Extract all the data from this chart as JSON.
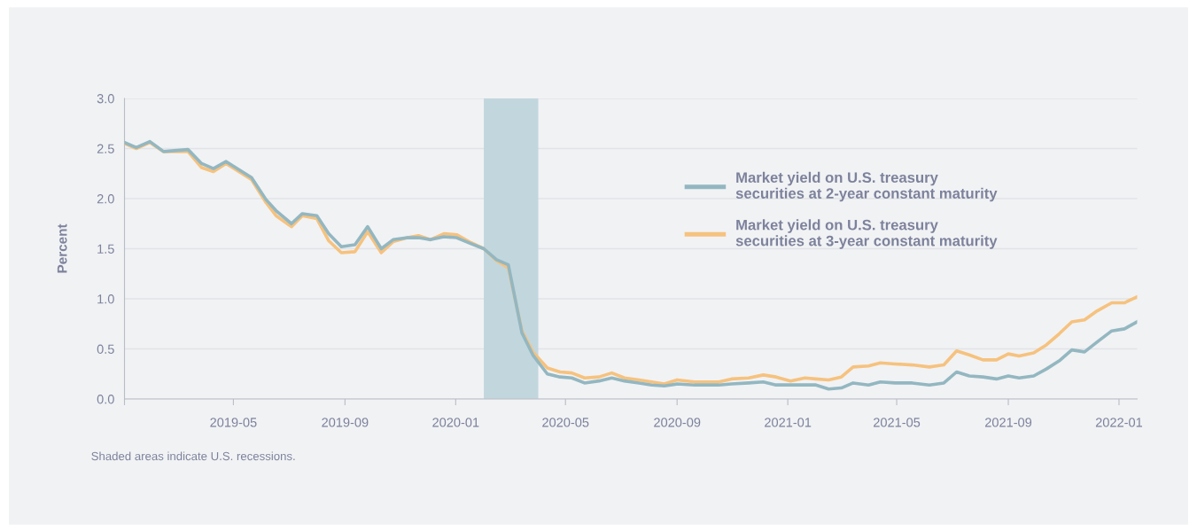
{
  "chart_data": {
    "type": "line",
    "ylabel": "Percent",
    "x": [
      "2019-01-01",
      "2019-01-14",
      "2019-01-29",
      "2019-02-13",
      "2019-03-12",
      "2019-03-27",
      "2019-04-09",
      "2019-04-23",
      "2019-05-21",
      "2019-06-06",
      "2019-06-17",
      "2019-07-04",
      "2019-07-16",
      "2019-08-01",
      "2019-08-14",
      "2019-08-28",
      "2019-09-12",
      "2019-09-26",
      "2019-10-11",
      "2019-10-24",
      "2019-11-09",
      "2019-11-21",
      "2019-12-04",
      "2019-12-19",
      "2020-01-02",
      "2020-01-18",
      "2020-02-01",
      "2020-02-15",
      "2020-02-28",
      "2020-03-14",
      "2020-03-26",
      "2020-04-11",
      "2020-04-25",
      "2020-05-08",
      "2020-05-22",
      "2020-06-07",
      "2020-06-21",
      "2020-07-05",
      "2020-07-21",
      "2020-08-04",
      "2020-08-18",
      "2020-09-01",
      "2020-09-20",
      "2020-10-03",
      "2020-10-17",
      "2020-10-31",
      "2020-11-19",
      "2020-12-05",
      "2020-12-19",
      "2021-01-04",
      "2021-01-20",
      "2021-02-01",
      "2021-02-15",
      "2021-03-01",
      "2021-03-14",
      "2021-03-31",
      "2021-04-13",
      "2021-04-29",
      "2021-05-18",
      "2021-06-06",
      "2021-06-22",
      "2021-07-06",
      "2021-07-20",
      "2021-08-04",
      "2021-08-19",
      "2021-09-01",
      "2021-09-13",
      "2021-09-29",
      "2021-10-13",
      "2021-10-27",
      "2021-11-10",
      "2021-11-24",
      "2021-12-08",
      "2021-12-24",
      "2022-01-07",
      "2022-01-21"
    ],
    "series": [
      {
        "name": "Market yield on U.S. treasury securities at 2-year constant maturity",
        "color": "#93b7c1",
        "values": [
          2.56,
          2.51,
          2.57,
          2.47,
          2.49,
          2.35,
          2.3,
          2.37,
          2.21,
          1.99,
          1.88,
          1.75,
          1.85,
          1.83,
          1.65,
          1.52,
          1.54,
          1.72,
          1.5,
          1.59,
          1.61,
          1.61,
          1.59,
          1.62,
          1.61,
          1.55,
          1.5,
          1.39,
          1.34,
          0.66,
          0.44,
          0.25,
          0.22,
          0.21,
          0.16,
          0.18,
          0.21,
          0.18,
          0.16,
          0.14,
          0.13,
          0.15,
          0.14,
          0.14,
          0.14,
          0.15,
          0.16,
          0.17,
          0.14,
          0.14,
          0.14,
          0.14,
          0.1,
          0.11,
          0.16,
          0.14,
          0.17,
          0.16,
          0.16,
          0.14,
          0.16,
          0.27,
          0.23,
          0.22,
          0.2,
          0.23,
          0.21,
          0.23,
          0.3,
          0.38,
          0.49,
          0.47,
          0.57,
          0.68,
          0.7,
          0.77
        ]
      },
      {
        "name": "Market yield on U.S. treasury securities at 3-year constant maturity",
        "color": "#f6c27e",
        "values": [
          2.55,
          2.5,
          2.56,
          2.47,
          2.47,
          2.31,
          2.27,
          2.35,
          2.19,
          1.96,
          1.83,
          1.72,
          1.83,
          1.8,
          1.58,
          1.46,
          1.47,
          1.67,
          1.46,
          1.57,
          1.61,
          1.63,
          1.59,
          1.65,
          1.64,
          1.56,
          1.5,
          1.38,
          1.31,
          0.68,
          0.47,
          0.31,
          0.27,
          0.26,
          0.21,
          0.22,
          0.26,
          0.21,
          0.19,
          0.17,
          0.15,
          0.19,
          0.17,
          0.17,
          0.17,
          0.2,
          0.21,
          0.24,
          0.22,
          0.18,
          0.21,
          0.2,
          0.19,
          0.22,
          0.32,
          0.33,
          0.36,
          0.35,
          0.34,
          0.32,
          0.34,
          0.48,
          0.44,
          0.39,
          0.39,
          0.45,
          0.43,
          0.46,
          0.54,
          0.65,
          0.77,
          0.79,
          0.88,
          0.96,
          0.96,
          1.02
        ]
      }
    ],
    "xlim": [
      "2019-01-01",
      "2022-01-21"
    ],
    "xticks": [
      {
        "value": "2019-01-01",
        "label": null
      },
      {
        "value": "2019-05-01",
        "label": "2019-05"
      },
      {
        "value": "2019-09-01",
        "label": "2019-09"
      },
      {
        "value": "2020-01-01",
        "label": "2020-01"
      },
      {
        "value": "2020-05-01",
        "label": "2020-05"
      },
      {
        "value": "2020-09-01",
        "label": "2020-09"
      },
      {
        "value": "2021-01-01",
        "label": "2021-01"
      },
      {
        "value": "2021-05-01",
        "label": "2021-05"
      },
      {
        "value": "2021-09-01",
        "label": "2021-09"
      },
      {
        "value": "2022-01-01",
        "label": "2022-01"
      }
    ],
    "ylim": [
      0,
      3.0
    ],
    "yticks": [
      {
        "value": 0,
        "label": "0.0"
      },
      {
        "value": 0.5,
        "label": "0.5"
      },
      {
        "value": 1.0,
        "label": "1.0"
      },
      {
        "value": 1.5,
        "label": "1.5"
      },
      {
        "value": 2.0,
        "label": "2.0"
      },
      {
        "value": 2.5,
        "label": "2.5"
      },
      {
        "value": 3.0,
        "label": "3.0"
      }
    ],
    "bands": [
      {
        "axis": "x",
        "from": "2020-02-01",
        "to": "2020-04-01",
        "color": "#c2d6dd"
      }
    ],
    "grid": "y",
    "legend": "top right",
    "marker": "none",
    "line_style": "solid",
    "annotations": [
      "Shaded areas indicate U.S. recessions."
    ]
  }
}
